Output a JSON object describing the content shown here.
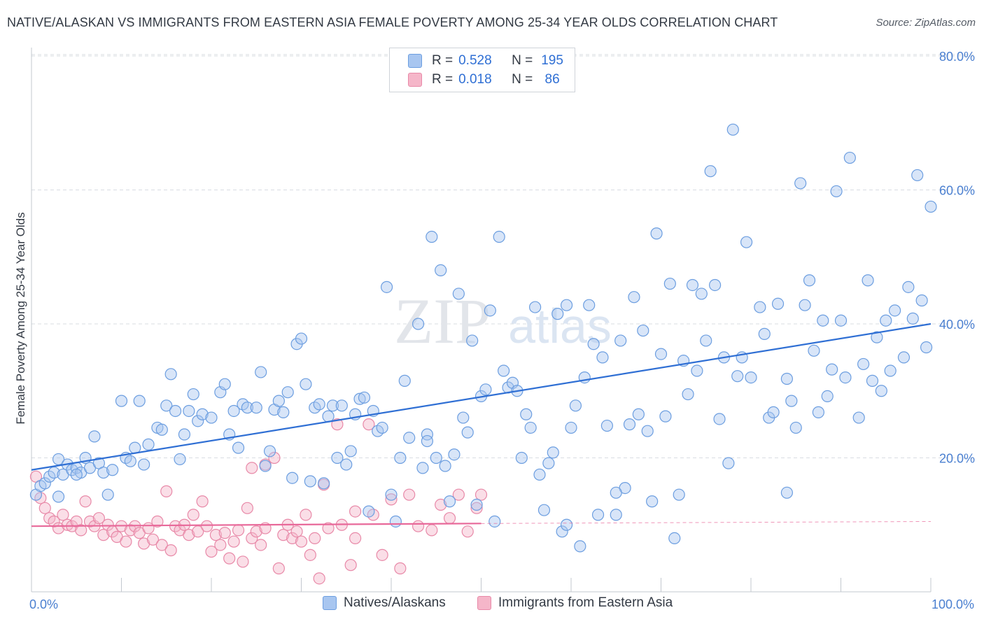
{
  "title": "NATIVE/ALASKAN VS IMMIGRANTS FROM EASTERN ASIA FEMALE POVERTY AMONG 25-34 YEAR OLDS CORRELATION CHART",
  "source": "Source: ZipAtlas.com",
  "watermark": {
    "zip": "ZIP",
    "atlas": "atlas"
  },
  "colors": {
    "blue_fill": "#a8c6f0",
    "blue_stroke": "#6c9ee0",
    "blue_line": "#2f6fd4",
    "pink_fill": "#f5b6c9",
    "pink_stroke": "#e889a8",
    "pink_line": "#e8699a",
    "tick_label": "#4a7fd0",
    "grid": "#d8dce2"
  },
  "legend_box": {
    "rows": [
      {
        "r_label": "R =",
        "r_value": "0.528",
        "n_label": "N =",
        "n_value": "195"
      },
      {
        "r_label": "R =",
        "r_value": "0.018",
        "n_label": "N =",
        "n_value": " 86"
      }
    ]
  },
  "bottom_legend": [
    "Natives/Alaskans",
    "Immigrants from Eastern Asia"
  ],
  "chart_data": {
    "type": "scatter",
    "title": "NATIVE/ALASKAN VS IMMIGRANTS FROM EASTERN ASIA FEMALE POVERTY AMONG 25-34 YEAR OLDS CORRELATION CHART",
    "xlabel": "",
    "ylabel": "Female Poverty Among 25-34 Year Olds",
    "xlim": [
      0,
      100
    ],
    "ylim": [
      0,
      80
    ],
    "x_tick_labels": [
      "0.0%",
      "100.0%"
    ],
    "y_tick_labels": [
      "20.0%",
      "40.0%",
      "60.0%",
      "80.0%"
    ],
    "y_ticks": [
      20,
      40,
      60,
      80
    ],
    "grid": true,
    "legend_position": "top-center",
    "series": [
      {
        "name": "Natives/Alaskans",
        "r": 0.528,
        "n": 195,
        "trend": {
          "x": [
            0,
            100
          ],
          "y": [
            18.2,
            40.0
          ]
        },
        "points": [
          [
            0.5,
            14.5
          ],
          [
            1.0,
            15.8
          ],
          [
            1.5,
            16.2
          ],
          [
            2.0,
            17.2
          ],
          [
            2.5,
            17.8
          ],
          [
            3.0,
            19.8
          ],
          [
            3.5,
            17.5
          ],
          [
            4.0,
            19.0
          ],
          [
            4.5,
            18.2
          ],
          [
            5.0,
            18.5
          ],
          [
            5.5,
            17.8
          ],
          [
            6.0,
            20.0
          ],
          [
            6.5,
            18.5
          ],
          [
            7.0,
            23.2
          ],
          [
            7.5,
            19.2
          ],
          [
            8.0,
            17.8
          ],
          [
            8.5,
            14.5
          ],
          [
            9.0,
            18.2
          ],
          [
            10.0,
            28.5
          ],
          [
            10.5,
            20.0
          ],
          [
            11.0,
            19.5
          ],
          [
            11.5,
            21.5
          ],
          [
            12.0,
            28.5
          ],
          [
            12.5,
            19.0
          ],
          [
            13.0,
            22.0
          ],
          [
            14.0,
            24.5
          ],
          [
            14.5,
            24.2
          ],
          [
            15.0,
            27.8
          ],
          [
            15.5,
            32.5
          ],
          [
            16.0,
            27.0
          ],
          [
            16.5,
            19.8
          ],
          [
            17.0,
            23.5
          ],
          [
            17.5,
            27.0
          ],
          [
            18.0,
            29.5
          ],
          [
            18.5,
            25.5
          ],
          [
            19.0,
            26.5
          ],
          [
            20.0,
            26.0
          ],
          [
            21.0,
            29.8
          ],
          [
            21.5,
            31.0
          ],
          [
            22.0,
            23.5
          ],
          [
            22.5,
            27.0
          ],
          [
            23.0,
            21.5
          ],
          [
            23.5,
            28.0
          ],
          [
            24.0,
            27.5
          ],
          [
            25.0,
            27.5
          ],
          [
            25.5,
            32.8
          ],
          [
            26.0,
            18.8
          ],
          [
            26.5,
            21.0
          ],
          [
            27.0,
            27.2
          ],
          [
            27.5,
            28.5
          ],
          [
            28.0,
            26.8
          ],
          [
            28.5,
            29.8
          ],
          [
            29.0,
            17.0
          ],
          [
            29.5,
            37.0
          ],
          [
            30.0,
            37.8
          ],
          [
            30.5,
            31.0
          ],
          [
            31.0,
            16.5
          ],
          [
            31.5,
            27.5
          ],
          [
            32.0,
            28.0
          ],
          [
            32.5,
            16.2
          ],
          [
            33.0,
            26.2
          ],
          [
            33.5,
            27.8
          ],
          [
            34.0,
            20.0
          ],
          [
            34.5,
            27.8
          ],
          [
            35.0,
            19.0
          ],
          [
            35.5,
            21.0
          ],
          [
            36.0,
            26.5
          ],
          [
            36.5,
            28.8
          ],
          [
            37.0,
            29.0
          ],
          [
            37.5,
            12.0
          ],
          [
            38.0,
            27.0
          ],
          [
            38.5,
            24.0
          ],
          [
            39.0,
            24.5
          ],
          [
            39.5,
            45.5
          ],
          [
            40.0,
            14.5
          ],
          [
            40.5,
            10.5
          ],
          [
            41.0,
            20.0
          ],
          [
            41.5,
            31.5
          ],
          [
            42.0,
            23.0
          ],
          [
            43.0,
            40.0
          ],
          [
            43.5,
            18.5
          ],
          [
            44.0,
            23.5
          ],
          [
            44.5,
            53.0
          ],
          [
            45.0,
            20.0
          ],
          [
            45.5,
            48.0
          ],
          [
            46.0,
            18.8
          ],
          [
            46.5,
            13.5
          ],
          [
            47.0,
            20.5
          ],
          [
            47.5,
            44.5
          ],
          [
            48.0,
            26.0
          ],
          [
            48.5,
            23.8
          ],
          [
            49.0,
            37.5
          ],
          [
            49.5,
            13.0
          ],
          [
            50.0,
            29.2
          ],
          [
            50.5,
            30.2
          ],
          [
            51.0,
            42.0
          ],
          [
            51.5,
            10.5
          ],
          [
            52.0,
            53.0
          ],
          [
            52.5,
            33.0
          ],
          [
            53.0,
            30.5
          ],
          [
            53.5,
            31.2
          ],
          [
            54.0,
            30.0
          ],
          [
            54.5,
            20.0
          ],
          [
            55.0,
            26.5
          ],
          [
            55.5,
            24.5
          ],
          [
            56.0,
            42.5
          ],
          [
            56.5,
            17.5
          ],
          [
            57.0,
            12.2
          ],
          [
            57.5,
            19.2
          ],
          [
            58.0,
            20.8
          ],
          [
            58.5,
            41.5
          ],
          [
            59.0,
            9.0
          ],
          [
            59.5,
            42.8
          ],
          [
            60.0,
            24.5
          ],
          [
            60.5,
            27.8
          ],
          [
            61.0,
            6.8
          ],
          [
            61.5,
            32.0
          ],
          [
            62.0,
            42.8
          ],
          [
            62.5,
            37.0
          ],
          [
            63.0,
            11.5
          ],
          [
            63.5,
            35.0
          ],
          [
            64.0,
            24.8
          ],
          [
            65.0,
            11.5
          ],
          [
            65.5,
            37.5
          ],
          [
            66.0,
            15.5
          ],
          [
            66.5,
            25.0
          ],
          [
            67.0,
            44.0
          ],
          [
            67.5,
            26.5
          ],
          [
            68.0,
            39.0
          ],
          [
            68.5,
            24.0
          ],
          [
            69.0,
            13.5
          ],
          [
            69.5,
            53.5
          ],
          [
            70.0,
            35.5
          ],
          [
            70.5,
            26.2
          ],
          [
            71.0,
            46.0
          ],
          [
            71.5,
            8.0
          ],
          [
            72.0,
            14.5
          ],
          [
            72.5,
            34.5
          ],
          [
            73.0,
            29.5
          ],
          [
            73.5,
            45.8
          ],
          [
            74.0,
            33.0
          ],
          [
            74.5,
            44.5
          ],
          [
            75.0,
            37.5
          ],
          [
            75.5,
            62.8
          ],
          [
            76.0,
            45.8
          ],
          [
            76.5,
            25.8
          ],
          [
            77.0,
            35.0
          ],
          [
            77.5,
            19.2
          ],
          [
            78.0,
            69.0
          ],
          [
            78.5,
            32.2
          ],
          [
            79.0,
            35.0
          ],
          [
            79.5,
            52.2
          ],
          [
            80.0,
            32.0
          ],
          [
            81.0,
            42.5
          ],
          [
            81.5,
            38.5
          ],
          [
            82.0,
            26.0
          ],
          [
            82.5,
            26.8
          ],
          [
            83.0,
            43.0
          ],
          [
            84.0,
            31.8
          ],
          [
            84.5,
            28.5
          ],
          [
            85.0,
            24.5
          ],
          [
            85.5,
            61.0
          ],
          [
            86.0,
            42.8
          ],
          [
            86.5,
            46.5
          ],
          [
            87.0,
            36.0
          ],
          [
            87.5,
            26.8
          ],
          [
            88.0,
            40.5
          ],
          [
            88.5,
            29.2
          ],
          [
            89.0,
            33.2
          ],
          [
            89.5,
            59.8
          ],
          [
            90.0,
            40.5
          ],
          [
            90.5,
            32.0
          ],
          [
            91.0,
            64.8
          ],
          [
            92.0,
            26.0
          ],
          [
            92.5,
            34.0
          ],
          [
            93.0,
            46.5
          ],
          [
            93.5,
            31.5
          ],
          [
            94.0,
            38.0
          ],
          [
            94.5,
            30.0
          ],
          [
            95.0,
            40.5
          ],
          [
            95.5,
            33.0
          ],
          [
            96.0,
            42.0
          ],
          [
            97.0,
            35.0
          ],
          [
            97.5,
            45.5
          ],
          [
            98.0,
            40.8
          ],
          [
            98.5,
            62.2
          ],
          [
            99.0,
            43.5
          ],
          [
            99.5,
            36.5
          ],
          [
            100.0,
            57.5
          ],
          [
            65.0,
            14.8
          ],
          [
            44.0,
            22.5
          ],
          [
            59.5,
            10.0
          ],
          [
            84.0,
            14.8
          ],
          [
            3.0,
            14.2
          ],
          [
            5.0,
            17.5
          ]
        ]
      },
      {
        "name": "Immigrants from Eastern Asia",
        "r": 0.018,
        "n": 86,
        "trend": {
          "x": [
            0,
            50
          ],
          "y": [
            9.8,
            10.2
          ]
        },
        "trend_dashed": {
          "x": [
            50,
            100
          ],
          "y": [
            10.2,
            10.5
          ]
        },
        "points": [
          [
            0.5,
            17.2
          ],
          [
            1.0,
            14.0
          ],
          [
            1.5,
            12.5
          ],
          [
            2.0,
            11.0
          ],
          [
            2.5,
            10.5
          ],
          [
            3.0,
            9.5
          ],
          [
            3.5,
            11.5
          ],
          [
            4.0,
            10.0
          ],
          [
            4.5,
            9.8
          ],
          [
            5.0,
            10.5
          ],
          [
            5.5,
            9.2
          ],
          [
            6.0,
            13.5
          ],
          [
            6.5,
            10.5
          ],
          [
            7.0,
            9.8
          ],
          [
            7.5,
            11.0
          ],
          [
            8.0,
            8.5
          ],
          [
            8.5,
            10.0
          ],
          [
            9.0,
            9.0
          ],
          [
            9.5,
            8.2
          ],
          [
            10.0,
            9.8
          ],
          [
            10.5,
            7.5
          ],
          [
            11.0,
            9.2
          ],
          [
            11.5,
            9.8
          ],
          [
            12.0,
            8.8
          ],
          [
            12.5,
            7.2
          ],
          [
            13.0,
            9.5
          ],
          [
            13.5,
            7.8
          ],
          [
            14.0,
            10.5
          ],
          [
            14.5,
            7.0
          ],
          [
            15.0,
            15.0
          ],
          [
            15.5,
            6.2
          ],
          [
            16.0,
            9.8
          ],
          [
            16.5,
            9.2
          ],
          [
            17.0,
            10.0
          ],
          [
            17.5,
            8.5
          ],
          [
            18.0,
            11.5
          ],
          [
            18.5,
            9.0
          ],
          [
            19.0,
            13.5
          ],
          [
            19.5,
            9.8
          ],
          [
            20.0,
            6.0
          ],
          [
            20.5,
            8.5
          ],
          [
            21.0,
            7.0
          ],
          [
            21.5,
            8.8
          ],
          [
            22.0,
            5.0
          ],
          [
            22.5,
            7.5
          ],
          [
            23.0,
            9.2
          ],
          [
            23.5,
            4.5
          ],
          [
            24.0,
            12.5
          ],
          [
            24.5,
            8.0
          ],
          [
            25.0,
            9.0
          ],
          [
            25.5,
            7.0
          ],
          [
            26.0,
            9.5
          ],
          [
            27.0,
            20.0
          ],
          [
            27.5,
            3.5
          ],
          [
            28.0,
            8.5
          ],
          [
            28.5,
            10.0
          ],
          [
            29.0,
            8.0
          ],
          [
            29.5,
            9.0
          ],
          [
            30.0,
            7.5
          ],
          [
            30.5,
            11.5
          ],
          [
            31.0,
            5.5
          ],
          [
            31.5,
            8.0
          ],
          [
            32.0,
            2.0
          ],
          [
            32.5,
            16.0
          ],
          [
            33.0,
            9.5
          ],
          [
            34.0,
            25.0
          ],
          [
            34.5,
            10.0
          ],
          [
            35.5,
            4.0
          ],
          [
            36.0,
            12.0
          ],
          [
            37.5,
            25.0
          ],
          [
            38.0,
            11.5
          ],
          [
            39.0,
            5.5
          ],
          [
            40.0,
            13.8
          ],
          [
            41.0,
            3.5
          ],
          [
            42.0,
            14.5
          ],
          [
            43.0,
            9.8
          ],
          [
            44.5,
            9.2
          ],
          [
            45.5,
            13.0
          ],
          [
            46.5,
            11.0
          ],
          [
            47.5,
            14.5
          ],
          [
            48.5,
            9.0
          ],
          [
            49.5,
            12.5
          ],
          [
            50.0,
            14.5
          ],
          [
            26.0,
            19.0
          ],
          [
            24.5,
            18.5
          ],
          [
            36.0,
            8.0
          ]
        ]
      }
    ]
  }
}
